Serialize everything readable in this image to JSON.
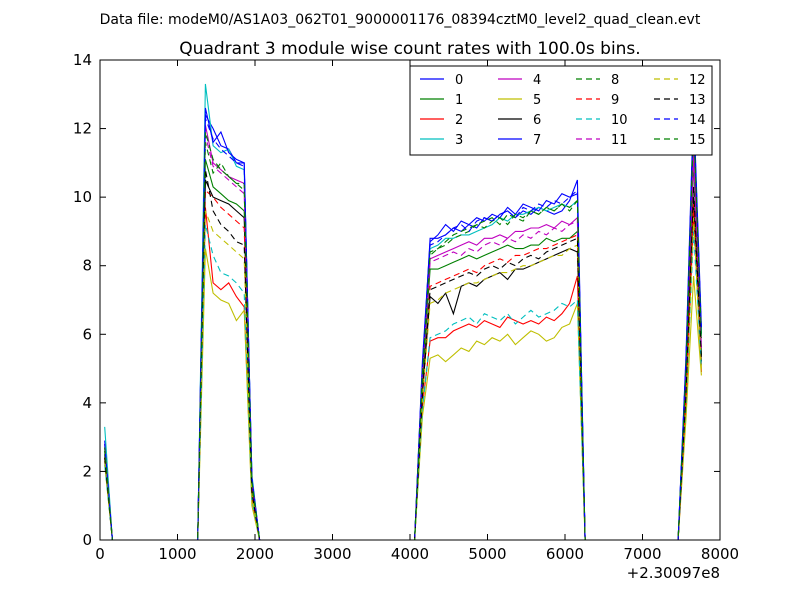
{
  "header": {
    "datafile": "Data file: modeM0/AS1A03_062T01_9000001176_08394cztM0_level2_quad_clean.evt",
    "title": "Quadrant 3 module wise count rates with 100.0s bins."
  },
  "chart_data": {
    "type": "line",
    "title": "Quadrant 3 module wise count rates with 100.0s bins.",
    "xlabel": "",
    "ylabel": "",
    "x_offset_label": "+2.30097e8",
    "xlim": [
      0,
      8000
    ],
    "ylim": [
      0,
      14
    ],
    "x_ticks": [
      0,
      1000,
      2000,
      3000,
      4000,
      5000,
      6000,
      7000,
      8000
    ],
    "y_ticks": [
      0,
      2,
      4,
      6,
      8,
      10,
      12,
      14
    ],
    "grid": false,
    "legend": {
      "placement": "top-right",
      "columns": 4
    },
    "x": [
      60,
      160,
      1260,
      1360,
      1460,
      1560,
      1660,
      1760,
      1860,
      1960,
      2060,
      4060,
      4160,
      4260,
      4360,
      4460,
      4560,
      4660,
      4760,
      4860,
      4960,
      5060,
      5160,
      5260,
      5360,
      5460,
      5560,
      5660,
      5760,
      5860,
      5960,
      6060,
      6160,
      6260,
      7460,
      7560,
      7660,
      7760
    ],
    "series": [
      {
        "name": "0",
        "color": "#0000ff",
        "dash": "solid",
        "values": [
          2.9,
          0,
          0,
          12.4,
          12.0,
          11.5,
          11.4,
          11.0,
          11.0,
          1.8,
          0,
          0,
          5.0,
          8.8,
          8.8,
          8.9,
          9.1,
          9.0,
          9.2,
          9.1,
          9.4,
          9.3,
          9.5,
          9.6,
          9.4,
          9.6,
          9.5,
          9.7,
          9.6,
          9.5,
          9.6,
          9.9,
          10.5,
          0,
          0,
          5.0,
          12.4,
          6.0
        ]
      },
      {
        "name": "1",
        "color": "#008000",
        "dash": "solid",
        "values": [
          2.6,
          0,
          0,
          11.1,
          10.3,
          10.1,
          9.9,
          9.8,
          9.6,
          1.3,
          0,
          0,
          4.6,
          7.9,
          7.9,
          8.0,
          8.1,
          8.2,
          8.3,
          8.2,
          8.3,
          8.4,
          8.5,
          8.6,
          8.5,
          8.5,
          8.6,
          8.6,
          8.8,
          8.7,
          8.8,
          8.8,
          9.0,
          0,
          0,
          4.3,
          11.0,
          5.4
        ]
      },
      {
        "name": "2",
        "color": "#ff0000",
        "dash": "solid",
        "values": [
          2.3,
          0,
          0,
          9.7,
          7.5,
          7.3,
          7.5,
          7.1,
          6.8,
          1.2,
          0,
          0,
          3.9,
          5.8,
          5.9,
          5.9,
          6.1,
          6.2,
          6.3,
          6.2,
          6.4,
          6.3,
          6.2,
          6.5,
          6.4,
          6.3,
          6.4,
          6.3,
          6.5,
          6.4,
          6.6,
          6.9,
          7.7,
          0,
          0,
          3.8,
          9.5,
          4.9
        ]
      },
      {
        "name": "3",
        "color": "#00bfbf",
        "dash": "solid",
        "values": [
          3.3,
          0,
          0,
          13.3,
          11.5,
          11.3,
          11.4,
          10.9,
          10.8,
          1.9,
          0,
          0,
          5.1,
          8.5,
          8.6,
          8.8,
          8.8,
          8.9,
          8.9,
          9.0,
          9.1,
          9.2,
          9.4,
          9.3,
          9.5,
          9.5,
          9.6,
          9.7,
          9.6,
          9.7,
          9.8,
          9.7,
          9.9,
          0,
          0,
          5.1,
          11.9,
          6.0
        ]
      },
      {
        "name": "4",
        "color": "#bf00bf",
        "dash": "solid",
        "values": [
          2.8,
          0,
          0,
          12.1,
          11.0,
          10.8,
          10.6,
          10.5,
          10.4,
          1.7,
          0,
          0,
          4.8,
          8.2,
          8.3,
          8.4,
          8.5,
          8.6,
          8.7,
          8.6,
          8.8,
          8.8,
          8.9,
          8.8,
          9.0,
          9.0,
          9.1,
          9.1,
          9.2,
          9.1,
          9.3,
          9.2,
          9.4,
          0,
          0,
          4.7,
          11.3,
          5.6
        ]
      },
      {
        "name": "5",
        "color": "#bfbf00",
        "dash": "solid",
        "values": [
          2.2,
          0,
          0,
          8.5,
          7.2,
          7.0,
          6.9,
          6.4,
          6.7,
          1.0,
          0,
          0,
          3.6,
          5.3,
          5.4,
          5.2,
          5.4,
          5.6,
          5.5,
          5.8,
          5.7,
          5.9,
          5.8,
          6.0,
          5.7,
          5.9,
          6.1,
          6.0,
          5.8,
          5.9,
          6.2,
          6.3,
          6.9,
          0,
          0,
          3.5,
          7.7,
          4.8
        ]
      },
      {
        "name": "6",
        "color": "#000000",
        "dash": "solid",
        "values": [
          2.5,
          0,
          0,
          10.5,
          10.0,
          9.9,
          9.8,
          9.6,
          9.4,
          1.5,
          0,
          0,
          4.3,
          7.1,
          6.9,
          7.2,
          6.6,
          7.4,
          7.5,
          7.4,
          7.6,
          7.7,
          7.8,
          7.6,
          7.9,
          7.9,
          8.0,
          8.1,
          8.2,
          8.3,
          8.4,
          8.5,
          8.4,
          0,
          0,
          4.2,
          10.0,
          5.2
        ]
      },
      {
        "name": "7",
        "color": "#0000ff",
        "dash": "solid",
        "values": [
          2.7,
          0,
          0,
          12.6,
          11.6,
          11.9,
          11.3,
          11.1,
          11.0,
          1.8,
          0,
          0,
          5.2,
          8.7,
          8.9,
          9.2,
          9.0,
          9.3,
          9.2,
          9.4,
          9.3,
          9.5,
          9.4,
          9.7,
          9.5,
          9.8,
          9.7,
          9.6,
          9.9,
          9.8,
          10.1,
          10.0,
          10.1,
          0,
          0,
          5.3,
          12.7,
          6.2
        ]
      },
      {
        "name": "8",
        "color": "#008000",
        "dash": "dashed",
        "values": [
          2.6,
          0,
          0,
          11.6,
          10.7,
          11.0,
          10.6,
          10.4,
          10.4,
          1.6,
          0,
          0,
          4.7,
          8.3,
          8.5,
          8.6,
          8.8,
          8.9,
          9.0,
          9.2,
          9.1,
          9.3,
          9.4,
          9.2,
          9.5,
          9.4,
          9.6,
          9.5,
          9.7,
          9.6,
          9.8,
          9.6,
          9.9,
          0,
          0,
          4.8,
          12.1,
          5.8
        ]
      },
      {
        "name": "9",
        "color": "#ff0000",
        "dash": "dashed",
        "values": [
          2.4,
          0,
          0,
          10.2,
          10.0,
          9.7,
          9.5,
          9.3,
          9.1,
          1.4,
          0,
          0,
          4.2,
          7.4,
          7.5,
          7.6,
          7.7,
          7.8,
          7.9,
          7.8,
          8.0,
          8.1,
          8.2,
          8.1,
          8.3,
          8.3,
          8.4,
          8.5,
          8.5,
          8.6,
          8.7,
          8.8,
          8.9,
          0,
          0,
          4.1,
          9.8,
          5.1
        ]
      },
      {
        "name": "10",
        "color": "#00bfbf",
        "dash": "dashed",
        "values": [
          2.2,
          0,
          0,
          9.2,
          8.3,
          7.8,
          7.7,
          7.5,
          7.2,
          1.2,
          0,
          0,
          3.8,
          5.9,
          6.0,
          6.1,
          6.3,
          6.4,
          6.5,
          6.3,
          6.6,
          6.5,
          6.4,
          6.6,
          6.3,
          6.5,
          6.7,
          6.5,
          6.6,
          6.7,
          6.9,
          6.8,
          7.0,
          0,
          0,
          3.9,
          9.0,
          5.0
        ]
      },
      {
        "name": "11",
        "color": "#bf00bf",
        "dash": "dashed",
        "values": [
          2.7,
          0,
          0,
          11.8,
          10.9,
          10.7,
          10.5,
          10.3,
          10.1,
          1.7,
          0,
          0,
          4.9,
          8.1,
          8.2,
          8.3,
          8.4,
          8.3,
          8.5,
          8.4,
          8.6,
          8.7,
          8.6,
          8.8,
          8.7,
          8.9,
          8.8,
          9.0,
          8.9,
          9.1,
          9.0,
          9.2,
          9.3,
          0,
          0,
          4.6,
          11.1,
          5.6
        ]
      },
      {
        "name": "12",
        "color": "#bfbf00",
        "dash": "dashed",
        "values": [
          2.3,
          0,
          0,
          9.6,
          9.0,
          8.8,
          8.6,
          8.4,
          8.2,
          1.3,
          0,
          0,
          4.1,
          6.9,
          7.0,
          7.2,
          7.3,
          7.4,
          7.5,
          7.5,
          7.6,
          7.7,
          7.8,
          7.8,
          7.9,
          8.0,
          8.0,
          8.1,
          8.2,
          8.3,
          8.3,
          8.5,
          8.6,
          0,
          0,
          4.0,
          9.4,
          5.0
        ]
      },
      {
        "name": "13",
        "color": "#000000",
        "dash": "dashed",
        "values": [
          2.4,
          0,
          0,
          10.8,
          9.6,
          9.2,
          9.0,
          8.7,
          8.6,
          1.4,
          0,
          0,
          4.2,
          7.3,
          7.4,
          7.5,
          7.6,
          7.7,
          7.8,
          7.7,
          7.9,
          8.0,
          7.9,
          8.1,
          8.0,
          8.2,
          8.3,
          8.2,
          8.4,
          8.5,
          8.6,
          8.7,
          8.8,
          0,
          0,
          4.2,
          10.3,
          5.3
        ]
      },
      {
        "name": "14",
        "color": "#0000ff",
        "dash": "dashed",
        "values": [
          2.8,
          0,
          0,
          12.3,
          11.7,
          11.4,
          11.2,
          11.0,
          10.9,
          1.8,
          0,
          0,
          5.0,
          8.6,
          8.7,
          8.9,
          9.1,
          9.2,
          9.0,
          9.3,
          9.4,
          9.3,
          9.5,
          9.6,
          9.4,
          9.7,
          9.6,
          9.8,
          9.7,
          9.9,
          9.8,
          10.0,
          10.2,
          0,
          0,
          5.2,
          12.5,
          6.1
        ]
      },
      {
        "name": "15",
        "color": "#008000",
        "dash": "dashed",
        "values": [
          2.7,
          0,
          0,
          11.9,
          11.1,
          10.8,
          10.6,
          10.4,
          10.2,
          1.7,
          0,
          0,
          4.8,
          8.4,
          8.5,
          8.7,
          8.9,
          9.0,
          9.1,
          9.2,
          9.3,
          9.4,
          9.2,
          9.5,
          9.4,
          9.3,
          9.6,
          9.5,
          9.7,
          9.6,
          9.8,
          9.7,
          9.9,
          0,
          0,
          4.9,
          12.2,
          5.9
        ]
      }
    ]
  }
}
